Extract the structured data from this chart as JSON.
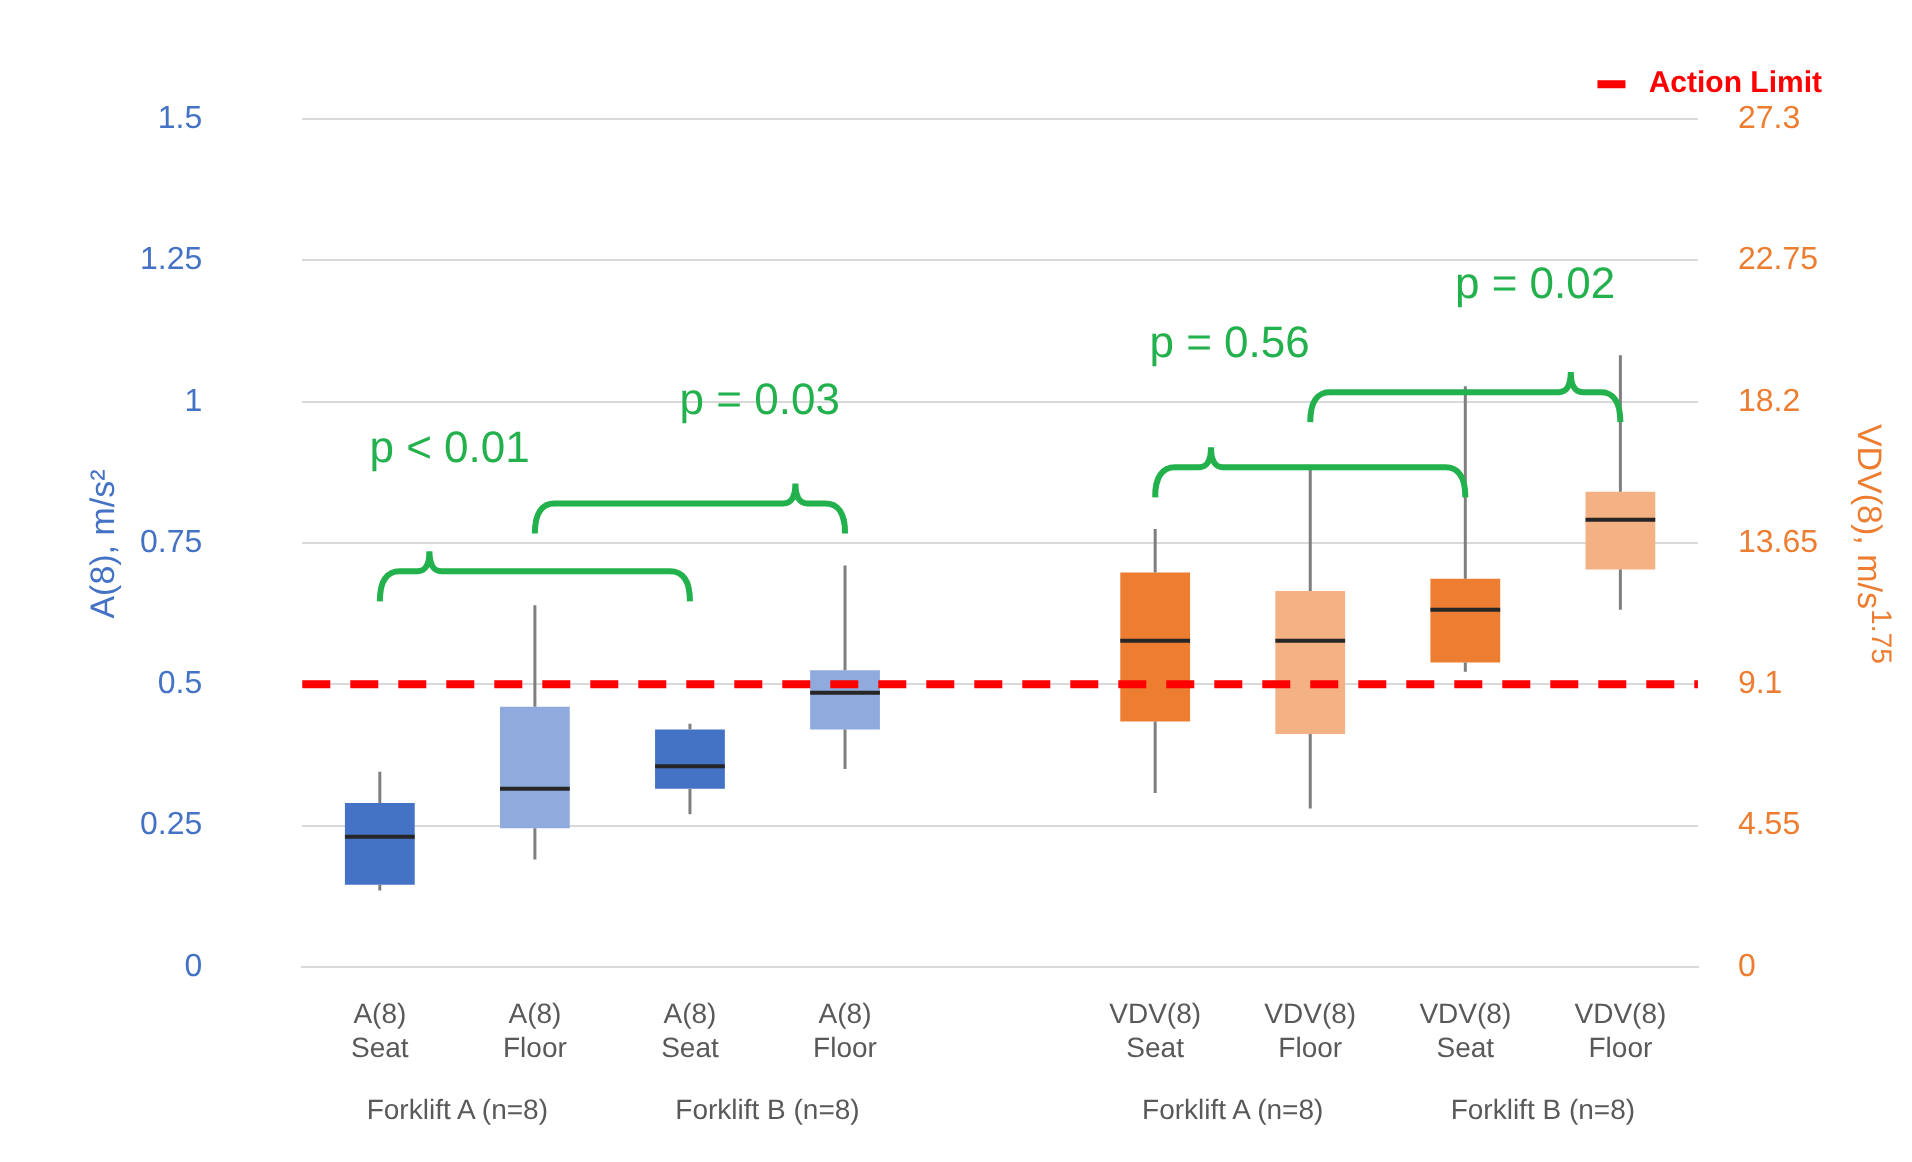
{
  "chart_data": {
    "type": "box",
    "categories": [
      "A(8)\nSeat",
      "A(8)\nFloor",
      "A(8)\nSeat",
      "A(8)\nFloor",
      null,
      "VDV(8)\nSeat",
      "VDV(8)\nFloor",
      "VDV(8)\nSeat",
      "VDV(8)\nFloor"
    ],
    "ylabel": "A(8), m/s²",
    "y2label": "VDV(8), m/s$^{1.75}$",
    "ylim": [
      0,
      1.5
    ],
    "yticks": [
      0,
      0.25,
      0.5,
      0.75,
      1,
      1.25,
      1.5
    ],
    "y2lim": [
      0,
      27.3
    ],
    "y2ticks": [
      0,
      4.55,
      9.1,
      13.65,
      18.2,
      22.75,
      27.3
    ],
    "grid": "y",
    "legend": "top right",
    "series": [
      {
        "colors": [
          "#4472c4",
          "#8faadc",
          "#4472c4",
          "#8faadc",
          null,
          null,
          null,
          null,
          null
        ],
        "boxes": [
          {
            "low": 0.135,
            "q1": 0.145,
            "median": 0.23,
            "q3": 0.29,
            "high": 0.345
          },
          {
            "low": 0.19,
            "q1": 0.245,
            "median": 0.315,
            "q3": 0.46,
            "high": 0.64
          },
          {
            "low": 0.27,
            "q1": 0.315,
            "median": 0.355,
            "q3": 0.42,
            "high": 0.43
          },
          {
            "low": 0.35,
            "q1": 0.42,
            "median": 0.485,
            "q3": 0.525,
            "high": 0.71
          },
          null,
          null,
          null,
          null,
          null
        ]
      },
      {
        "axis": "y2",
        "colors": [
          null,
          null,
          null,
          null,
          null,
          "#ed7d31",
          "#f4b183",
          "#ed7d31",
          "#f4b183"
        ],
        "boxes": [
          null,
          null,
          null,
          null,
          null,
          {
            "low": 5.6,
            "q1": 7.9,
            "median": 10.5,
            "q3": 12.7,
            "high": 14.1
          },
          {
            "low": 5.1,
            "q1": 7.5,
            "median": 10.5,
            "q3": 12.1,
            "high": 16
          },
          {
            "low": 9.5,
            "q1": 9.8,
            "median": 11.5,
            "q3": 12.5,
            "high": 18.7
          },
          {
            "low": 11.5,
            "q1": 12.8,
            "median": 14.4,
            "q3": 15.3,
            "high": 19.7
          }
        ]
      }
    ],
    "ref_lines": [
      {
        "axis": "y",
        "value": 0.5,
        "label": "Action Limit",
        "color": "#ff0000",
        "line_style": "dashed"
      }
    ],
    "annotations": [
      "p < 0.01",
      "p = 0.03",
      "p = 0.56",
      "p = 0.02",
      "Forklift A (n=8)",
      "Forklift B (n=8)",
      "Forklift A (n=8)",
      "Forklift B (n=8)"
    ]
  }
}
